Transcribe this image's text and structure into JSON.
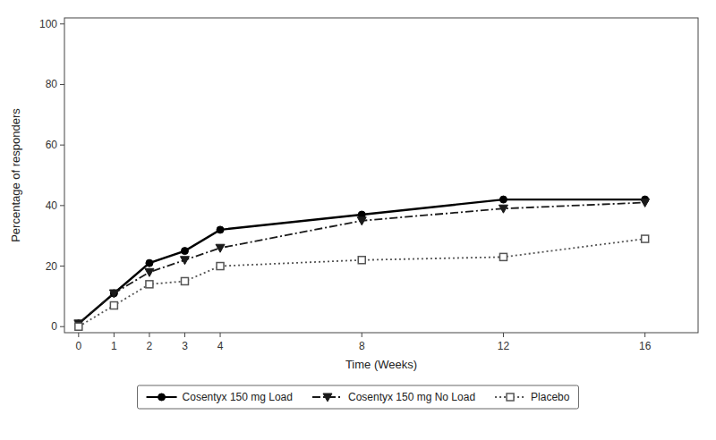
{
  "chart_data": {
    "type": "line",
    "x_label": "Time (Weeks)",
    "y_label": "Percentage of responders",
    "x": [
      0,
      1,
      2,
      3,
      4,
      8,
      12,
      16
    ],
    "series": [
      {
        "name": "Cosentyx 150 mg Load",
        "color": "#000000",
        "marker": "circle",
        "line_style": "solid",
        "values": [
          1,
          11,
          21,
          25,
          32,
          37,
          42,
          42
        ]
      },
      {
        "name": "Cosentyx 150 mg No Load",
        "color": "#1a1a1a",
        "marker": "triangle-down",
        "line_style": "dashdot",
        "values": [
          1,
          11,
          18,
          22,
          26,
          35,
          39,
          41
        ]
      },
      {
        "name": "Placebo",
        "color": "#555555",
        "marker": "open-square",
        "line_style": "dotted",
        "values": [
          0,
          7,
          14,
          15,
          20,
          22,
          23,
          29
        ]
      }
    ],
    "xlim": [
      -0.4,
      17.5
    ],
    "ylim": [
      -2,
      102
    ],
    "xticks": [
      0,
      1,
      2,
      3,
      4,
      8,
      12,
      16
    ],
    "yticks": [
      0,
      20,
      40,
      60,
      80,
      100
    ],
    "grid": false,
    "legend": "bottom"
  }
}
